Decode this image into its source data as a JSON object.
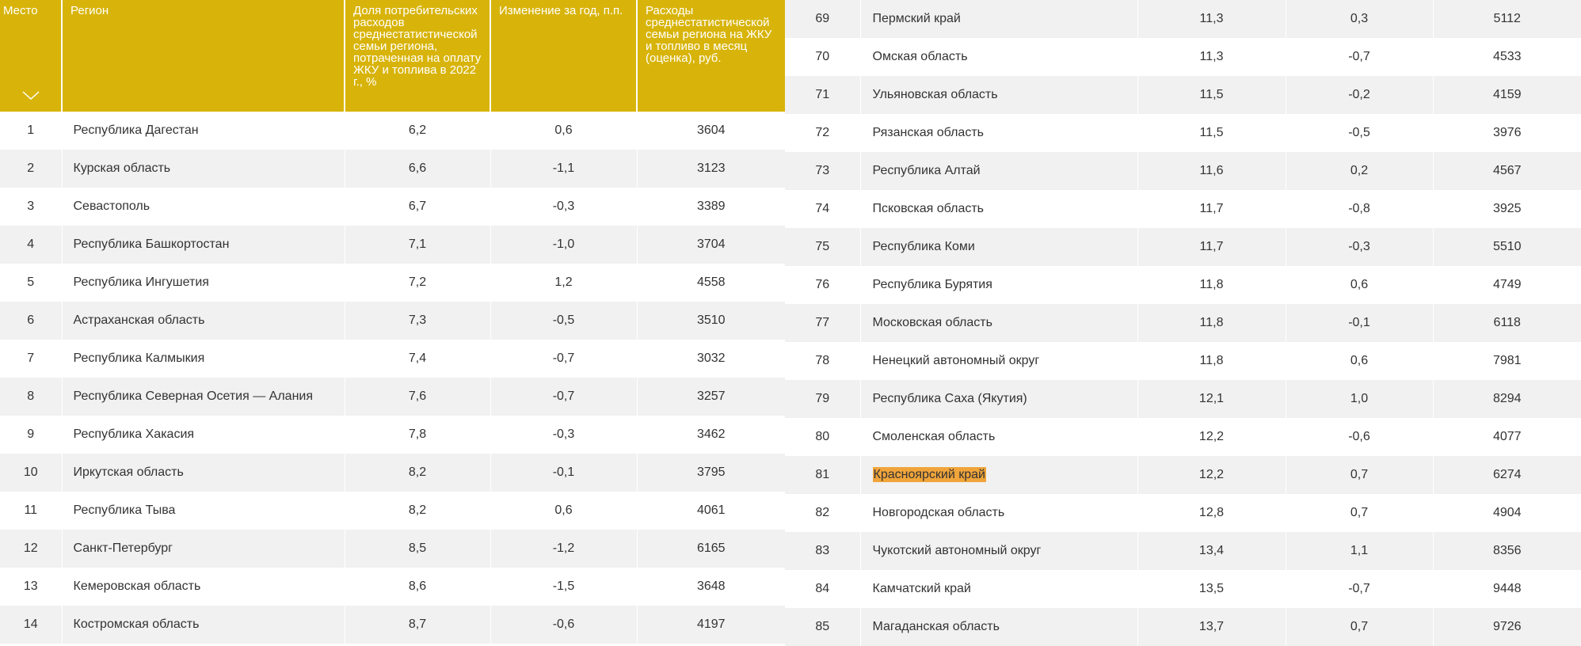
{
  "header": {
    "place": "Место",
    "region": "Регион",
    "share": "Доля потребительских расходов среднестатистической семьи региона, потраченная на оплату ЖКУ и топлива в 2022 г., %",
    "change": "Изменение за год, п.п.",
    "spend": "Расходы среднестатистической семьи региона на ЖКУ и топливо в месяц (оценка), руб."
  },
  "left_rows": [
    {
      "place": "1",
      "region": "Республика Дагестан",
      "share": "6,2",
      "change": "0,6",
      "spend": "3604"
    },
    {
      "place": "2",
      "region": "Курская область",
      "share": "6,6",
      "change": "-1,1",
      "spend": "3123"
    },
    {
      "place": "3",
      "region": "Севастополь",
      "share": "6,7",
      "change": "-0,3",
      "spend": "3389"
    },
    {
      "place": "4",
      "region": "Республика Башкортостан",
      "share": "7,1",
      "change": "-1,0",
      "spend": "3704"
    },
    {
      "place": "5",
      "region": "Республика Ингушетия",
      "share": "7,2",
      "change": "1,2",
      "spend": "4558"
    },
    {
      "place": "6",
      "region": "Астраханская область",
      "share": "7,3",
      "change": "-0,5",
      "spend": "3510"
    },
    {
      "place": "7",
      "region": "Республика Калмыкия",
      "share": "7,4",
      "change": "-0,7",
      "spend": "3032"
    },
    {
      "place": "8",
      "region": "Республика Северная Осетия — Алания",
      "share": "7,6",
      "change": "-0,7",
      "spend": "3257"
    },
    {
      "place": "9",
      "region": "Республика Хакасия",
      "share": "7,8",
      "change": "-0,3",
      "spend": "3462"
    },
    {
      "place": "10",
      "region": "Иркутская область",
      "share": "8,2",
      "change": "-0,1",
      "spend": "3795"
    },
    {
      "place": "11",
      "region": "Республика Тыва",
      "share": "8,2",
      "change": "0,6",
      "spend": "4061"
    },
    {
      "place": "12",
      "region": "Санкт-Петербург",
      "share": "8,5",
      "change": "-1,2",
      "spend": "6165"
    },
    {
      "place": "13",
      "region": "Кемеровская область",
      "share": "8,6",
      "change": "-1,5",
      "spend": "3648"
    },
    {
      "place": "14",
      "region": "Костромская область",
      "share": "8,7",
      "change": "-0,6",
      "spend": "4197"
    }
  ],
  "right_rows": [
    {
      "place": "69",
      "region": "Пермский край",
      "share": "11,3",
      "change": "0,3",
      "spend": "5112"
    },
    {
      "place": "70",
      "region": "Омская область",
      "share": "11,3",
      "change": "-0,7",
      "spend": "4533"
    },
    {
      "place": "71",
      "region": "Ульяновская область",
      "share": "11,5",
      "change": "-0,2",
      "spend": "4159"
    },
    {
      "place": "72",
      "region": "Рязанская область",
      "share": "11,5",
      "change": "-0,5",
      "spend": "3976"
    },
    {
      "place": "73",
      "region": "Республика Алтай",
      "share": "11,6",
      "change": "0,2",
      "spend": "4567"
    },
    {
      "place": "74",
      "region": "Псковская область",
      "share": "11,7",
      "change": "-0,8",
      "spend": "3925"
    },
    {
      "place": "75",
      "region": "Республика Коми",
      "share": "11,7",
      "change": "-0,3",
      "spend": "5510"
    },
    {
      "place": "76",
      "region": "Республика Бурятия",
      "share": "11,8",
      "change": "0,6",
      "spend": "4749"
    },
    {
      "place": "77",
      "region": "Московская область",
      "share": "11,8",
      "change": "-0,1",
      "spend": "6118"
    },
    {
      "place": "78",
      "region": "Ненецкий автономный округ",
      "share": "11,8",
      "change": "0,6",
      "spend": "7981"
    },
    {
      "place": "79",
      "region": "Республика Саха (Якутия)",
      "share": "12,1",
      "change": "1,0",
      "spend": "8294"
    },
    {
      "place": "80",
      "region": "Смоленская область",
      "share": "12,2",
      "change": "-0,6",
      "spend": "4077"
    },
    {
      "place": "81",
      "region": "Красноярский край",
      "share": "12,2",
      "change": "0,7",
      "spend": "6274",
      "highlighted": true
    },
    {
      "place": "82",
      "region": "Новгородская область",
      "share": "12,8",
      "change": "0,7",
      "spend": "4904"
    },
    {
      "place": "83",
      "region": "Чукотский автономный округ",
      "share": "13,4",
      "change": "1,1",
      "spend": "8356"
    },
    {
      "place": "84",
      "region": "Камчатский край",
      "share": "13,5",
      "change": "-0,7",
      "spend": "9448"
    },
    {
      "place": "85",
      "region": "Магаданская область",
      "share": "13,7",
      "change": "0,7",
      "spend": "9726"
    }
  ],
  "colors": {
    "header_bg": "#d8b40a",
    "stripe": "#f1f1f1",
    "highlight": "#f0a43a"
  },
  "icons": {
    "sort": "chevron-down-icon"
  }
}
